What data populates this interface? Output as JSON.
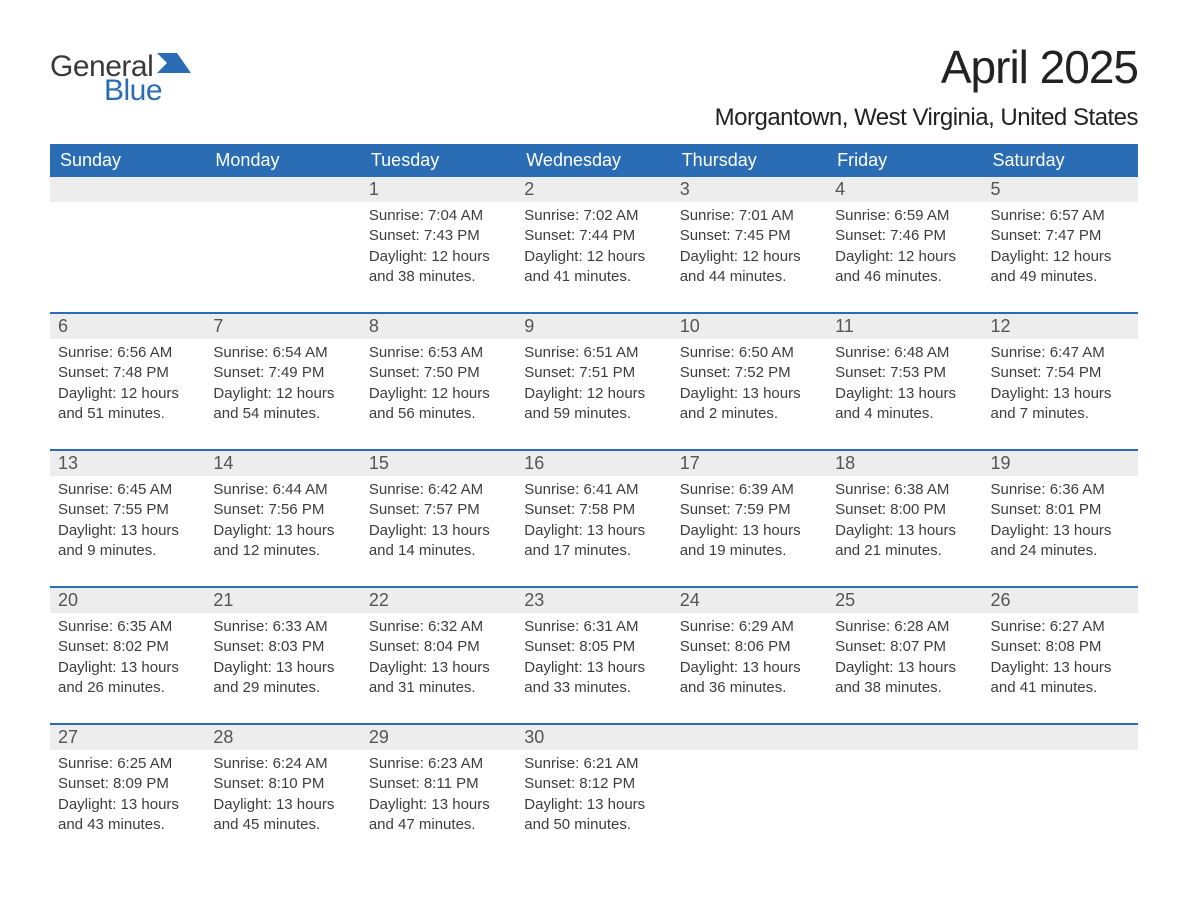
{
  "brand": {
    "word1": "General",
    "word2": "Blue",
    "logo_color": "#2a6db5",
    "text_dark": "#3a3a3a"
  },
  "header": {
    "month_title": "April 2025",
    "location": "Morgantown, West Virginia, United States"
  },
  "colors": {
    "header_bg": "#2a6db5",
    "header_text": "#ffffff",
    "daynum_bg": "#ededed",
    "body_text": "#3d3d3d",
    "rule": "#2a6db5",
    "page_bg": "#ffffff"
  },
  "typography": {
    "month_title_size_pt": 34,
    "location_size_pt": 18,
    "weekday_size_pt": 14,
    "daynum_size_pt": 14,
    "body_size_pt": 11
  },
  "calendar": {
    "type": "table",
    "columns": [
      "Sunday",
      "Monday",
      "Tuesday",
      "Wednesday",
      "Thursday",
      "Friday",
      "Saturday"
    ],
    "weeks": [
      [
        null,
        null,
        {
          "n": "1",
          "sunrise": "Sunrise: 7:04 AM",
          "sunset": "Sunset: 7:43 PM",
          "day1": "Daylight: 12 hours",
          "day2": "and 38 minutes."
        },
        {
          "n": "2",
          "sunrise": "Sunrise: 7:02 AM",
          "sunset": "Sunset: 7:44 PM",
          "day1": "Daylight: 12 hours",
          "day2": "and 41 minutes."
        },
        {
          "n": "3",
          "sunrise": "Sunrise: 7:01 AM",
          "sunset": "Sunset: 7:45 PM",
          "day1": "Daylight: 12 hours",
          "day2": "and 44 minutes."
        },
        {
          "n": "4",
          "sunrise": "Sunrise: 6:59 AM",
          "sunset": "Sunset: 7:46 PM",
          "day1": "Daylight: 12 hours",
          "day2": "and 46 minutes."
        },
        {
          "n": "5",
          "sunrise": "Sunrise: 6:57 AM",
          "sunset": "Sunset: 7:47 PM",
          "day1": "Daylight: 12 hours",
          "day2": "and 49 minutes."
        }
      ],
      [
        {
          "n": "6",
          "sunrise": "Sunrise: 6:56 AM",
          "sunset": "Sunset: 7:48 PM",
          "day1": "Daylight: 12 hours",
          "day2": "and 51 minutes."
        },
        {
          "n": "7",
          "sunrise": "Sunrise: 6:54 AM",
          "sunset": "Sunset: 7:49 PM",
          "day1": "Daylight: 12 hours",
          "day2": "and 54 minutes."
        },
        {
          "n": "8",
          "sunrise": "Sunrise: 6:53 AM",
          "sunset": "Sunset: 7:50 PM",
          "day1": "Daylight: 12 hours",
          "day2": "and 56 minutes."
        },
        {
          "n": "9",
          "sunrise": "Sunrise: 6:51 AM",
          "sunset": "Sunset: 7:51 PM",
          "day1": "Daylight: 12 hours",
          "day2": "and 59 minutes."
        },
        {
          "n": "10",
          "sunrise": "Sunrise: 6:50 AM",
          "sunset": "Sunset: 7:52 PM",
          "day1": "Daylight: 13 hours",
          "day2": "and 2 minutes."
        },
        {
          "n": "11",
          "sunrise": "Sunrise: 6:48 AM",
          "sunset": "Sunset: 7:53 PM",
          "day1": "Daylight: 13 hours",
          "day2": "and 4 minutes."
        },
        {
          "n": "12",
          "sunrise": "Sunrise: 6:47 AM",
          "sunset": "Sunset: 7:54 PM",
          "day1": "Daylight: 13 hours",
          "day2": "and 7 minutes."
        }
      ],
      [
        {
          "n": "13",
          "sunrise": "Sunrise: 6:45 AM",
          "sunset": "Sunset: 7:55 PM",
          "day1": "Daylight: 13 hours",
          "day2": "and 9 minutes."
        },
        {
          "n": "14",
          "sunrise": "Sunrise: 6:44 AM",
          "sunset": "Sunset: 7:56 PM",
          "day1": "Daylight: 13 hours",
          "day2": "and 12 minutes."
        },
        {
          "n": "15",
          "sunrise": "Sunrise: 6:42 AM",
          "sunset": "Sunset: 7:57 PM",
          "day1": "Daylight: 13 hours",
          "day2": "and 14 minutes."
        },
        {
          "n": "16",
          "sunrise": "Sunrise: 6:41 AM",
          "sunset": "Sunset: 7:58 PM",
          "day1": "Daylight: 13 hours",
          "day2": "and 17 minutes."
        },
        {
          "n": "17",
          "sunrise": "Sunrise: 6:39 AM",
          "sunset": "Sunset: 7:59 PM",
          "day1": "Daylight: 13 hours",
          "day2": "and 19 minutes."
        },
        {
          "n": "18",
          "sunrise": "Sunrise: 6:38 AM",
          "sunset": "Sunset: 8:00 PM",
          "day1": "Daylight: 13 hours",
          "day2": "and 21 minutes."
        },
        {
          "n": "19",
          "sunrise": "Sunrise: 6:36 AM",
          "sunset": "Sunset: 8:01 PM",
          "day1": "Daylight: 13 hours",
          "day2": "and 24 minutes."
        }
      ],
      [
        {
          "n": "20",
          "sunrise": "Sunrise: 6:35 AM",
          "sunset": "Sunset: 8:02 PM",
          "day1": "Daylight: 13 hours",
          "day2": "and 26 minutes."
        },
        {
          "n": "21",
          "sunrise": "Sunrise: 6:33 AM",
          "sunset": "Sunset: 8:03 PM",
          "day1": "Daylight: 13 hours",
          "day2": "and 29 minutes."
        },
        {
          "n": "22",
          "sunrise": "Sunrise: 6:32 AM",
          "sunset": "Sunset: 8:04 PM",
          "day1": "Daylight: 13 hours",
          "day2": "and 31 minutes."
        },
        {
          "n": "23",
          "sunrise": "Sunrise: 6:31 AM",
          "sunset": "Sunset: 8:05 PM",
          "day1": "Daylight: 13 hours",
          "day2": "and 33 minutes."
        },
        {
          "n": "24",
          "sunrise": "Sunrise: 6:29 AM",
          "sunset": "Sunset: 8:06 PM",
          "day1": "Daylight: 13 hours",
          "day2": "and 36 minutes."
        },
        {
          "n": "25",
          "sunrise": "Sunrise: 6:28 AM",
          "sunset": "Sunset: 8:07 PM",
          "day1": "Daylight: 13 hours",
          "day2": "and 38 minutes."
        },
        {
          "n": "26",
          "sunrise": "Sunrise: 6:27 AM",
          "sunset": "Sunset: 8:08 PM",
          "day1": "Daylight: 13 hours",
          "day2": "and 41 minutes."
        }
      ],
      [
        {
          "n": "27",
          "sunrise": "Sunrise: 6:25 AM",
          "sunset": "Sunset: 8:09 PM",
          "day1": "Daylight: 13 hours",
          "day2": "and 43 minutes."
        },
        {
          "n": "28",
          "sunrise": "Sunrise: 6:24 AM",
          "sunset": "Sunset: 8:10 PM",
          "day1": "Daylight: 13 hours",
          "day2": "and 45 minutes."
        },
        {
          "n": "29",
          "sunrise": "Sunrise: 6:23 AM",
          "sunset": "Sunset: 8:11 PM",
          "day1": "Daylight: 13 hours",
          "day2": "and 47 minutes."
        },
        {
          "n": "30",
          "sunrise": "Sunrise: 6:21 AM",
          "sunset": "Sunset: 8:12 PM",
          "day1": "Daylight: 13 hours",
          "day2": "and 50 minutes."
        },
        null,
        null,
        null
      ]
    ]
  }
}
